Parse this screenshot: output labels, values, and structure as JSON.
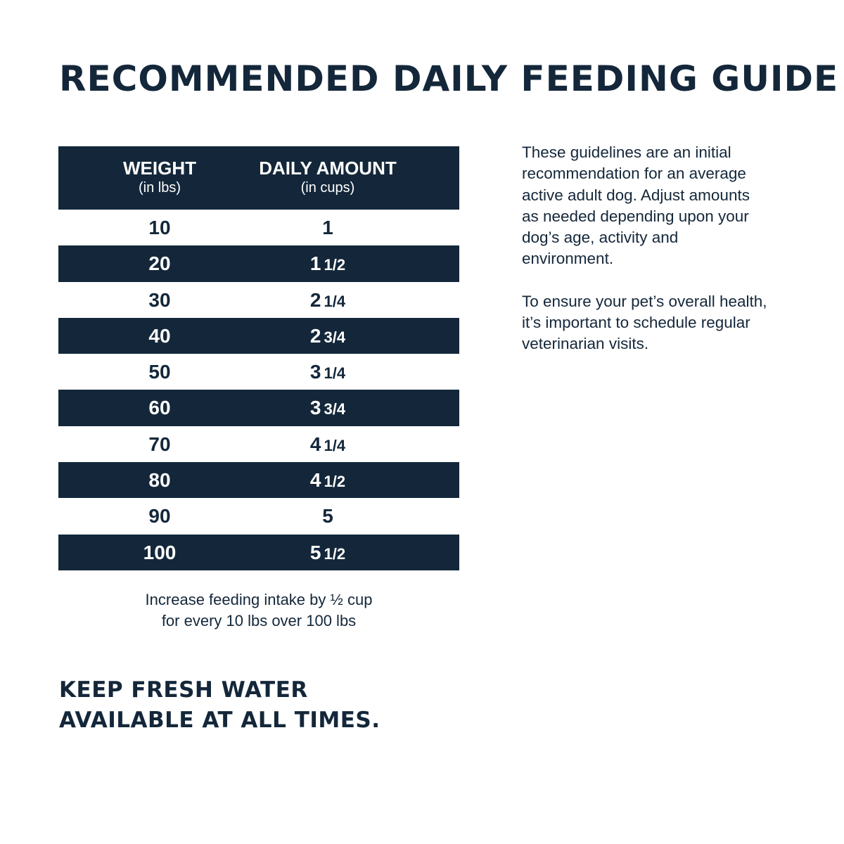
{
  "title": "RECOMMENDED DAILY FEEDING GUIDE",
  "table": {
    "headers": {
      "weight_label": "WEIGHT",
      "weight_unit": "(in lbs)",
      "amount_label": "DAILY AMOUNT",
      "amount_unit": "(in cups)"
    },
    "rows": [
      {
        "weight": "10",
        "whole": "1",
        "fraction": ""
      },
      {
        "weight": "20",
        "whole": "1",
        "fraction": "1/2"
      },
      {
        "weight": "30",
        "whole": "2",
        "fraction": "1/4"
      },
      {
        "weight": "40",
        "whole": "2",
        "fraction": "3/4"
      },
      {
        "weight": "50",
        "whole": "3",
        "fraction": "1/4"
      },
      {
        "weight": "60",
        "whole": "3",
        "fraction": "3/4"
      },
      {
        "weight": "70",
        "whole": "4",
        "fraction": "1/4"
      },
      {
        "weight": "80",
        "whole": "4",
        "fraction": "1/2"
      },
      {
        "weight": "90",
        "whole": "5",
        "fraction": ""
      },
      {
        "weight": "100",
        "whole": "5",
        "fraction": "1/2"
      }
    ]
  },
  "table_note": {
    "line1": "Increase feeding intake by ½ cup",
    "line2": "for every 10 lbs over 100 lbs"
  },
  "water_note": {
    "line1": "KEEP FRESH WATER",
    "line2": "AVAILABLE AT ALL TIMES."
  },
  "guidelines": {
    "paragraph1": [
      "These guidelines are an initial",
      "recommendation for an average",
      "active adult dog. Adjust amounts",
      "as needed depending upon your",
      "dog’s age, activity and",
      "environment."
    ],
    "paragraph2": [
      "To ensure your pet’s overall health,",
      "it’s important to schedule regular",
      "veterinarian visits."
    ]
  },
  "colors": {
    "navy": "#14273a",
    "background": "#ffffff"
  }
}
